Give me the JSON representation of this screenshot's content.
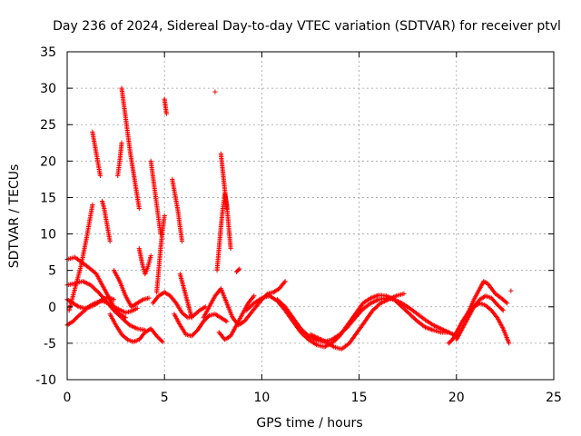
{
  "chart_data": {
    "type": "scatter",
    "title": "Day 236 of 2024, Sidereal Day-to-day VTEC variation (SDTVAR) for receiver ptvl",
    "xlabel": "GPS time / hours",
    "ylabel": "SDTVAR / TECUs",
    "xlim": [
      0,
      25
    ],
    "ylim": [
      -10,
      35
    ],
    "x_ticks": [
      0,
      5,
      10,
      15,
      20,
      25
    ],
    "y_ticks": [
      -10,
      -5,
      0,
      5,
      10,
      15,
      20,
      25,
      30,
      35
    ],
    "grid": true,
    "marker": "+",
    "color": "#ff0000",
    "series_segments": [
      {
        "x": [
          0.0,
          0.3,
          0.6,
          0.9,
          1.2,
          1.5,
          1.8,
          2.1,
          2.4,
          2.7,
          3.0,
          3.3,
          3.6
        ],
        "y": [
          -2.5,
          -2.0,
          -1.2,
          -0.5,
          0.2,
          0.6,
          0.8,
          0.5,
          0.0,
          -0.4,
          -0.8,
          -0.6,
          -0.2
        ]
      },
      {
        "x": [
          0.0,
          0.4,
          0.8,
          1.2,
          1.6,
          2.0,
          2.4,
          2.8,
          3.2,
          3.6,
          4.0
        ],
        "y": [
          3.0,
          3.2,
          3.5,
          3.0,
          2.0,
          0.8,
          -0.5,
          -1.5,
          -2.5,
          -3.0,
          -3.2
        ]
      },
      {
        "x": [
          0.0,
          0.4,
          0.8,
          1.2,
          1.5,
          1.8,
          2.1,
          2.4,
          2.7,
          3.0
        ],
        "y": [
          6.5,
          6.8,
          6.0,
          5.2,
          4.5,
          3.0,
          1.5,
          0.0,
          -1.0,
          -1.5
        ]
      },
      {
        "x": [
          0.0,
          0.3,
          0.6,
          0.9,
          1.2,
          1.5,
          1.8,
          2.1,
          2.4
        ],
        "y": [
          1.0,
          0.5,
          0.0,
          -0.2,
          0.0,
          0.4,
          1.0,
          1.3,
          1.0
        ]
      },
      {
        "x": [
          0.1,
          0.4,
          0.7,
          1.0,
          1.3
        ],
        "y": [
          -0.5,
          2.5,
          5.5,
          9.5,
          14.0
        ]
      },
      {
        "x": [
          1.3,
          1.4,
          1.5,
          1.6,
          1.7
        ],
        "y": [
          24.0,
          22.5,
          21.0,
          19.5,
          18.0
        ]
      },
      {
        "x": [
          1.8,
          1.9,
          2.0,
          2.1,
          2.2
        ],
        "y": [
          14.5,
          13.5,
          12.0,
          10.5,
          9.0
        ]
      },
      {
        "x": [
          2.6,
          2.7,
          2.8
        ],
        "y": [
          18.0,
          20.0,
          22.5
        ]
      },
      {
        "x": [
          2.8,
          2.95,
          3.1,
          3.25,
          3.4,
          3.55,
          3.7
        ],
        "y": [
          30.0,
          27.0,
          24.0,
          21.0,
          18.5,
          16.0,
          13.5
        ]
      },
      {
        "x": [
          2.2,
          2.5,
          2.8,
          3.1,
          3.4,
          3.7,
          4.0,
          4.3,
          4.6,
          4.9
        ],
        "y": [
          -1.0,
          -2.5,
          -3.8,
          -4.5,
          -4.8,
          -4.5,
          -3.5,
          -3.0,
          -4.0,
          -4.8
        ]
      },
      {
        "x": [
          2.4,
          2.7,
          3.0,
          3.3,
          3.6,
          3.9,
          4.2
        ],
        "y": [
          5.0,
          3.5,
          1.5,
          0.0,
          0.5,
          1.0,
          1.2
        ]
      },
      {
        "x": [
          3.7,
          3.85,
          4.0,
          4.15,
          4.3
        ],
        "y": [
          8.0,
          6.0,
          4.5,
          5.5,
          7.0
        ]
      },
      {
        "x": [
          4.3,
          4.4,
          4.5,
          4.6,
          4.7,
          4.8
        ],
        "y": [
          20.0,
          18.0,
          16.0,
          14.0,
          12.0,
          10.0
        ]
      },
      {
        "x": [
          4.6,
          4.7,
          4.8,
          4.9,
          5.0
        ],
        "y": [
          2.0,
          5.0,
          8.0,
          10.5,
          12.5
        ]
      },
      {
        "x": [
          5.0,
          5.05,
          5.1
        ],
        "y": [
          28.5,
          27.5,
          26.5
        ]
      },
      {
        "x": [
          5.4,
          5.5,
          5.6,
          5.7,
          5.8,
          5.9
        ],
        "y": [
          17.5,
          16.0,
          14.5,
          13.0,
          11.0,
          9.0
        ]
      },
      {
        "x": [
          4.4,
          4.7,
          5.0,
          5.3,
          5.6,
          5.9,
          6.2,
          6.5,
          6.8,
          7.1
        ],
        "y": [
          0.5,
          1.5,
          2.0,
          1.5,
          0.5,
          -0.8,
          -1.5,
          -1.2,
          -0.5,
          0.0
        ]
      },
      {
        "x": [
          5.5,
          5.8,
          6.1,
          6.4,
          6.7,
          7.0,
          7.3,
          7.6,
          7.9,
          8.2
        ],
        "y": [
          -1.0,
          -2.5,
          -3.8,
          -4.0,
          -3.2,
          -2.0,
          -1.2,
          -1.0,
          -1.5,
          -2.0
        ]
      },
      {
        "x": [
          5.8,
          6.0,
          6.2,
          6.4
        ],
        "y": [
          4.5,
          2.5,
          0.5,
          -1.5
        ]
      },
      {
        "x": [
          7.6
        ],
        "y": [
          29.5
        ]
      },
      {
        "x": [
          7.7,
          7.8,
          7.9,
          8.0,
          8.1,
          8.2,
          8.3,
          8.4
        ],
        "y": [
          5.0,
          8.0,
          11.0,
          13.5,
          15.5,
          14.0,
          11.0,
          8.0
        ]
      },
      {
        "x": [
          7.9,
          8.0,
          8.1,
          8.2
        ],
        "y": [
          21.0,
          18.5,
          16.0,
          13.5
        ]
      },
      {
        "x": [
          7.0,
          7.3,
          7.6,
          7.9,
          8.2,
          8.5,
          8.8,
          9.1,
          9.4,
          9.7,
          10.0,
          10.3,
          10.6,
          10.9,
          11.2
        ],
        "y": [
          -1.5,
          0.0,
          1.5,
          2.5,
          0.5,
          -1.5,
          -2.5,
          -2.0,
          -1.0,
          0.0,
          1.0,
          1.8,
          2.0,
          2.5,
          3.5
        ]
      },
      {
        "x": [
          7.8,
          8.1,
          8.4,
          8.7,
          9.0,
          9.3,
          9.6
        ],
        "y": [
          -3.5,
          -4.5,
          -4.0,
          -2.5,
          -1.0,
          0.5,
          1.5
        ]
      },
      {
        "x": [
          8.7,
          8.85
        ],
        "y": [
          4.8,
          5.2
        ]
      },
      {
        "x": [
          9.2,
          9.6,
          10.0,
          10.4,
          10.8,
          11.2,
          11.6,
          12.0,
          12.4,
          12.8,
          13.2,
          13.6,
          14.0,
          14.4,
          14.8,
          15.2,
          15.6,
          16.0,
          16.4,
          16.8,
          17.2,
          17.6,
          18.0,
          18.4,
          18.8,
          19.2,
          19.6
        ],
        "y": [
          -0.5,
          0.5,
          1.2,
          1.5,
          0.8,
          -0.5,
          -2.0,
          -3.5,
          -4.5,
          -5.2,
          -5.5,
          -5.0,
          -4.0,
          -2.5,
          -1.0,
          0.5,
          1.2,
          1.6,
          1.5,
          1.0,
          0.0,
          -1.0,
          -2.0,
          -2.8,
          -3.2,
          -3.5,
          -3.5
        ]
      },
      {
        "x": [
          10.8,
          11.2,
          11.6,
          12.0,
          12.4,
          12.8,
          13.2,
          13.6,
          14.0,
          14.4,
          14.8,
          15.2,
          15.6,
          16.0,
          16.4,
          16.8,
          17.2,
          17.6,
          18.0,
          18.4,
          18.8,
          19.2,
          19.6,
          20.0
        ],
        "y": [
          1.0,
          0.0,
          -1.5,
          -3.0,
          -4.0,
          -4.6,
          -4.8,
          -4.5,
          -3.8,
          -2.8,
          -1.5,
          -0.3,
          0.5,
          1.0,
          1.2,
          1.0,
          0.5,
          -0.2,
          -1.0,
          -1.8,
          -2.5,
          -3.0,
          -3.5,
          -4.0
        ]
      },
      {
        "x": [
          12.5,
          12.9,
          13.3,
          13.7,
          14.1,
          14.5,
          14.9,
          15.3,
          15.7,
          16.1,
          16.5,
          16.9,
          17.3
        ],
        "y": [
          -3.8,
          -4.3,
          -4.8,
          -5.5,
          -5.8,
          -5.0,
          -3.5,
          -2.0,
          -0.5,
          0.5,
          1.0,
          1.5,
          1.8
        ]
      },
      {
        "x": [
          19.6,
          19.8,
          20.0,
          20.3,
          20.6,
          20.9,
          21.2,
          21.5,
          21.8,
          22.1,
          22.4,
          22.7
        ],
        "y": [
          -5.0,
          -4.5,
          -3.5,
          -2.0,
          -0.8,
          0.0,
          0.5,
          0.2,
          -0.5,
          -1.5,
          -3.0,
          -5.0
        ]
      },
      {
        "x": [
          20.0,
          20.3,
          20.6,
          20.9,
          21.2,
          21.5,
          21.8,
          22.1,
          22.4
        ],
        "y": [
          -4.5,
          -3.0,
          -1.5,
          0.0,
          1.0,
          1.5,
          1.2,
          0.3,
          -0.5
        ]
      },
      {
        "x": [
          20.6,
          20.9,
          21.2,
          21.4,
          21.6,
          21.8,
          22.0,
          22.3,
          22.6
        ],
        "y": [
          -0.8,
          1.0,
          2.5,
          3.5,
          3.2,
          2.5,
          1.8,
          1.2,
          0.5
        ]
      },
      {
        "x": [
          22.8
        ],
        "y": [
          2.2
        ]
      }
    ]
  }
}
